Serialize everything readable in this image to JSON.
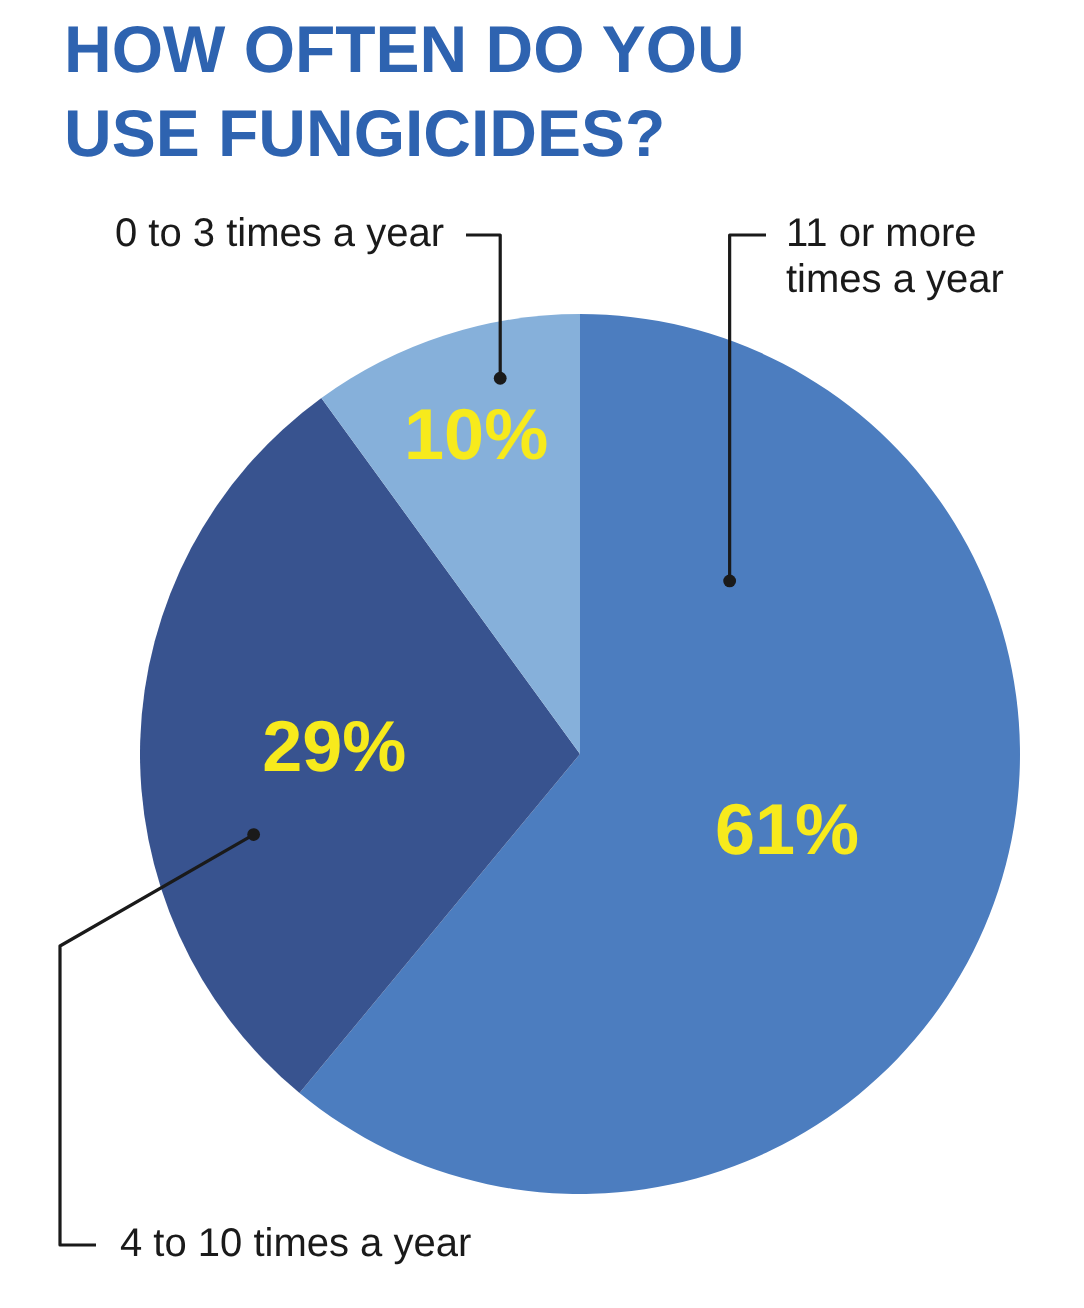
{
  "chart_data": {
    "type": "pie",
    "title": "HOW OFTEN DO YOU USE FUNGICIDES?",
    "categories": [
      "11 or more times a year",
      "4 to 10 times a year",
      "0 to 3 times a year"
    ],
    "values": [
      61,
      29,
      10
    ],
    "colors": [
      "#4c7dbf",
      "#38538f",
      "#86b0da"
    ],
    "value_labels": [
      "61%",
      "29%",
      "10%"
    ]
  }
}
